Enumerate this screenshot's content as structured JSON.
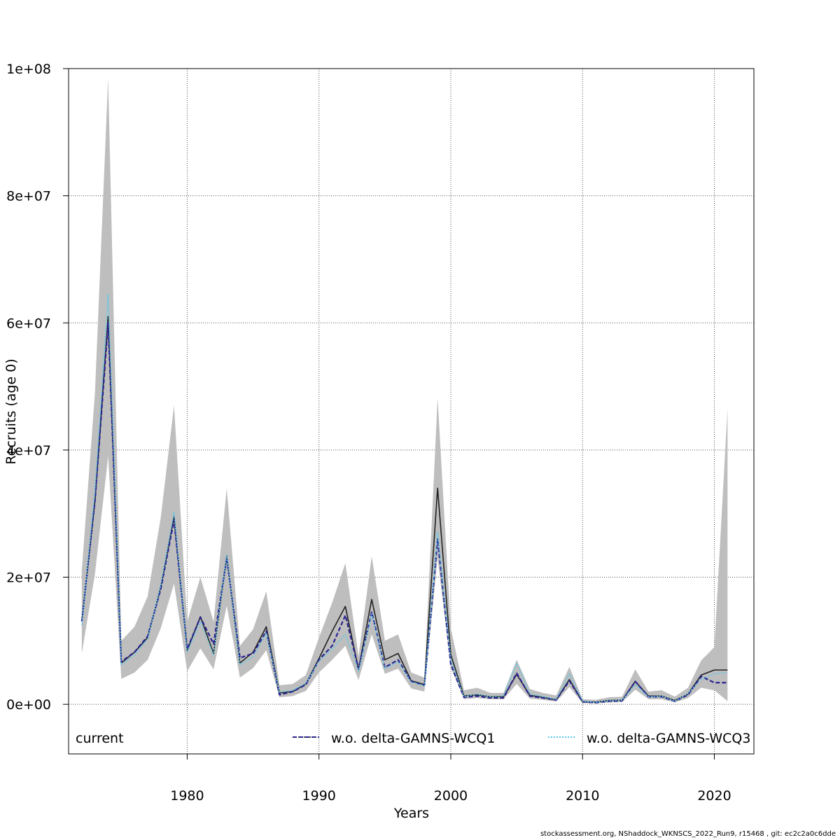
{
  "chart_data": {
    "type": "line",
    "title": "",
    "xlabel": "Years",
    "ylabel": "Recruits (age 0)",
    "xlim": [
      1971,
      2023
    ],
    "ylim": [
      -7800000,
      100000000
    ],
    "grid": true,
    "legend_placement": "bottom",
    "x_ticks": [
      1980,
      1990,
      2000,
      2010,
      2020
    ],
    "x_tick_labels": [
      "1980",
      "1990",
      "2000",
      "2010",
      "2020"
    ],
    "y_ticks": [
      0,
      20000000,
      40000000,
      60000000,
      80000000,
      100000000
    ],
    "y_tick_labels": [
      "0e+00",
      "2e+07",
      "4e+07",
      "6e+07",
      "8e+07",
      "1e+08"
    ],
    "x": [
      1972,
      1973,
      1974,
      1975,
      1976,
      1977,
      1978,
      1979,
      1980,
      1981,
      1982,
      1983,
      1984,
      1985,
      1986,
      1987,
      1988,
      1989,
      1990,
      1991,
      1992,
      1993,
      1994,
      1995,
      1996,
      1997,
      1998,
      1999,
      2000,
      2001,
      2002,
      2003,
      2004,
      2005,
      2006,
      2007,
      2008,
      2009,
      2010,
      2011,
      2012,
      2013,
      2014,
      2015,
      2016,
      2017,
      2018,
      2019,
      2020,
      2021
    ],
    "band": {
      "name": "current CI",
      "color": "#bebebe",
      "lower": [
        8000000,
        20500000,
        39000000,
        4000000,
        5000000,
        7000000,
        12000000,
        19000000,
        5200000,
        8800000,
        5500000,
        15500000,
        4200000,
        5700000,
        8500000,
        1100000,
        1300000,
        2100000,
        5000000,
        7000000,
        9200000,
        3800000,
        11000000,
        4800000,
        5600000,
        2500000,
        2000000,
        23000000,
        5800000,
        800000,
        1000000,
        800000,
        800000,
        3200000,
        900000,
        700000,
        400000,
        2700000,
        200000,
        150000,
        300000,
        350000,
        2300000,
        800000,
        800000,
        300000,
        1000000,
        2600000,
        2200000,
        500000
      ],
      "upper": [
        21000000,
        49000000,
        98500000,
        10000000,
        12200000,
        17000000,
        29500000,
        47000000,
        13000000,
        20000000,
        13000000,
        34000000,
        9200000,
        11800000,
        17800000,
        3000000,
        3200000,
        4600000,
        10500000,
        16000000,
        22200000,
        7600000,
        23300000,
        10000000,
        11000000,
        5000000,
        4200000,
        48200000,
        12000000,
        2200000,
        2600000,
        1800000,
        1800000,
        7000000,
        2400000,
        1800000,
        1400000,
        5900000,
        800000,
        700000,
        1100000,
        1200000,
        5500000,
        2000000,
        2200000,
        1200000,
        2600000,
        6900000,
        9000000,
        46500000
      ]
    },
    "series": [
      {
        "name": "current",
        "color": "#222222",
        "dash": "",
        "width": 1.6,
        "values": [
          13000000,
          32000000,
          61000000,
          6500000,
          8200000,
          10500000,
          18500000,
          29500000,
          8500000,
          13800000,
          8000000,
          23300000,
          6500000,
          8200000,
          12200000,
          1800000,
          2000000,
          3200000,
          7200000,
          11500000,
          15400000,
          5500000,
          16500000,
          7000000,
          8000000,
          3700000,
          3100000,
          34000000,
          7800000,
          1300000,
          1500000,
          1200000,
          1200000,
          4700000,
          1400000,
          1100000,
          700000,
          3900000,
          400000,
          350000,
          600000,
          650000,
          3600000,
          1300000,
          1300000,
          600000,
          1600000,
          4600000,
          5400000,
          5400000
        ]
      },
      {
        "name": "w.o. delta-GAMNS-WCQ1",
        "color": "#2b2391",
        "dash": "6,3",
        "width": 2.2,
        "values": [
          13000000,
          32000000,
          60000000,
          6700000,
          8200000,
          10700000,
          18200000,
          29000000,
          8700000,
          13700000,
          9500000,
          23000000,
          7300000,
          8000000,
          11500000,
          1500000,
          2000000,
          3100000,
          7000000,
          9200000,
          14000000,
          5600000,
          14500000,
          5800000,
          7000000,
          3600000,
          3000000,
          26000000,
          6300000,
          1100000,
          1300000,
          1000000,
          1000000,
          4900000,
          1300000,
          1000000,
          700000,
          3700000,
          400000,
          250000,
          500000,
          550000,
          3600000,
          1200000,
          1200000,
          500000,
          1500000,
          4400000,
          3400000,
          3400000
        ]
      },
      {
        "name": "w.o. delta-GAMNS-WCQ3",
        "color": "#5bc8e8",
        "dash": "2,2",
        "width": 1.6,
        "values": [
          12500000,
          33500000,
          64500000,
          6200000,
          7800000,
          10300000,
          18800000,
          30200000,
          8200000,
          13000000,
          7800000,
          23500000,
          6200000,
          7500000,
          11200000,
          1900000,
          2200000,
          3300000,
          6800000,
          8700000,
          11000000,
          5200000,
          14200000,
          5600000,
          6700000,
          3500000,
          2900000,
          27000000,
          7000000,
          1200000,
          1600000,
          1200000,
          1300000,
          6500000,
          1700000,
          1200000,
          800000,
          4800000,
          500000,
          300000,
          600000,
          650000,
          3100000,
          1200000,
          1300000,
          500000,
          1700000,
          3900000,
          4800000,
          5000000
        ]
      }
    ],
    "footer": "stockassessment.org, NShaddock_WKNSCS_2022_Run9, r15468 , git: ec2c2a0c6dde"
  }
}
